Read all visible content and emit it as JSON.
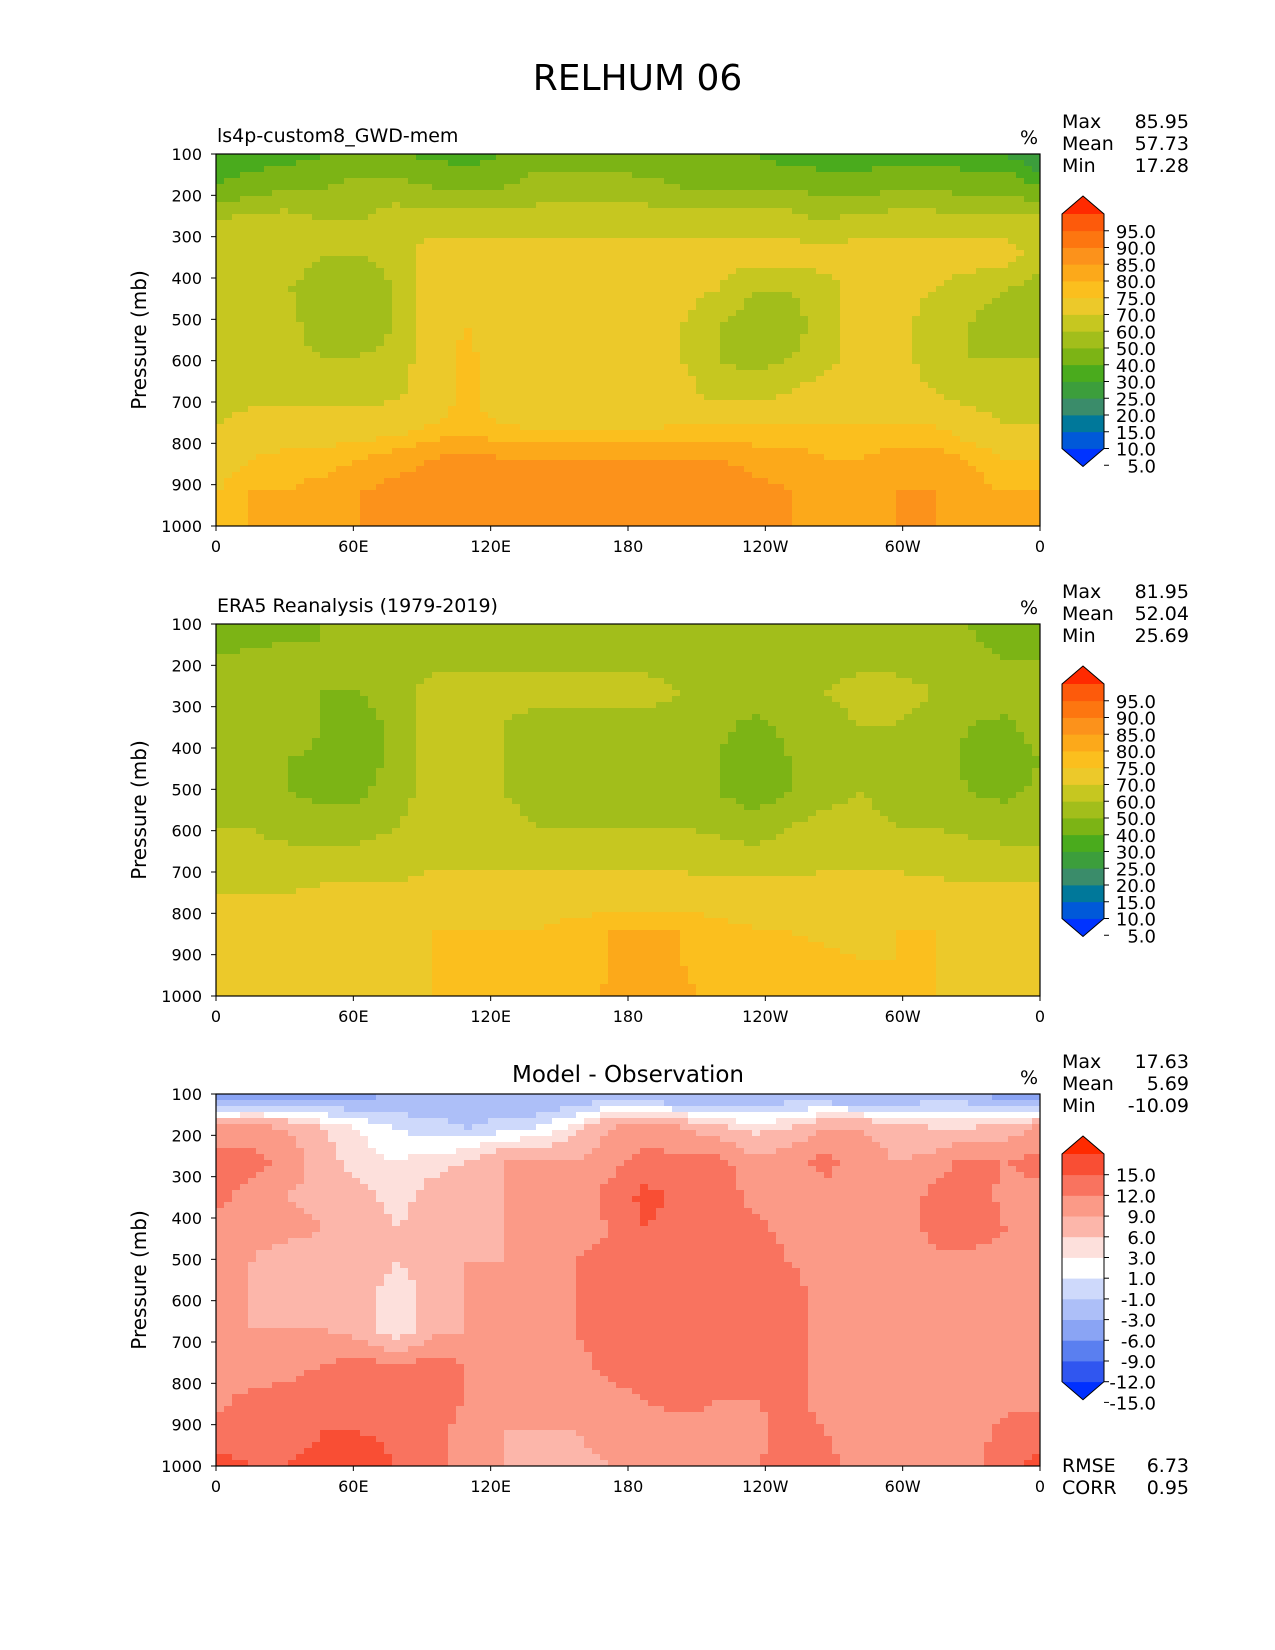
{
  "title": "RELHUM 06",
  "colors": {
    "rh_levels": [
      "#0033ff",
      "#0059d9",
      "#00789a",
      "#3a8c6a",
      "#3c9e3c",
      "#4aab1d",
      "#7cb415",
      "#a2be1b",
      "#c6c720",
      "#ecc92a",
      "#fbbf1e",
      "#fca91a",
      "#fc921b",
      "#fd7610",
      "#fd5a0b",
      "#ff2a00"
    ],
    "diff_levels": [
      "#0030ff",
      "#3056f0",
      "#5a7ff0",
      "#8aa4f4",
      "#adbff8",
      "#ced9fb",
      "#ffffff",
      "#fde0dc",
      "#fcb6aa",
      "#fb9a87",
      "#f9735f",
      "#f94e34",
      "#ff2a00"
    ]
  },
  "chart_data": [
    {
      "type": "contour",
      "subtitle": "ls4p-custom8_GWD-mem",
      "units": "%",
      "ylabel": "Pressure (mb)",
      "yticks": [
        "100",
        "200",
        "300",
        "400",
        "500",
        "600",
        "700",
        "800",
        "900",
        "1000"
      ],
      "xticks": [
        "0",
        "60E",
        "120E",
        "180",
        "120W",
        "60W",
        "0"
      ],
      "stats": {
        "max_label": "Max",
        "max": "85.95",
        "mean_label": "Mean",
        "mean": "57.73",
        "min_label": "Min",
        "min": "17.28"
      },
      "colorbar_ticks": [
        "95.0",
        "90.0",
        "85.0",
        "80.0",
        "75.0",
        "70.0",
        "60.0",
        "50.0",
        "40.0",
        "30.0",
        "25.0",
        "20.0",
        "15.0",
        "10.0",
        "5.0"
      ],
      "rows": [
        [
          25,
          25,
          25,
          30,
          30,
          30,
          28,
          25,
          30,
          35,
          35,
          35,
          30,
          30,
          30,
          30,
          25,
          25,
          25,
          25,
          25,
          25,
          25,
          20
        ],
        [
          30,
          35,
          40,
          40,
          45,
          45,
          40,
          40,
          40,
          45,
          45,
          45,
          45,
          40,
          40,
          40,
          40,
          35,
          35,
          40,
          40,
          35,
          35,
          30
        ],
        [
          50,
          55,
          55,
          50,
          50,
          55,
          55,
          55,
          55,
          55,
          55,
          55,
          55,
          55,
          55,
          55,
          55,
          50,
          55,
          55,
          55,
          55,
          55,
          55
        ],
        [
          55,
          55,
          55,
          50,
          50,
          55,
          65,
          65,
          65,
          65,
          65,
          65,
          65,
          65,
          65,
          65,
          65,
          65,
          65,
          65,
          65,
          65,
          65,
          55
        ],
        [
          50,
          55,
          50,
          45,
          40,
          50,
          65,
          65,
          65,
          65,
          65,
          65,
          65,
          65,
          60,
          50,
          50,
          55,
          65,
          65,
          60,
          55,
          50,
          45
        ],
        [
          50,
          55,
          55,
          40,
          40,
          50,
          65,
          70,
          65,
          65,
          65,
          65,
          65,
          60,
          50,
          45,
          45,
          55,
          65,
          65,
          55,
          50,
          45,
          50
        ],
        [
          55,
          55,
          55,
          50,
          50,
          55,
          65,
          72,
          65,
          65,
          65,
          65,
          65,
          60,
          50,
          45,
          50,
          55,
          65,
          65,
          55,
          50,
          50,
          50
        ],
        [
          55,
          55,
          55,
          55,
          55,
          58,
          65,
          72,
          65,
          65,
          65,
          65,
          65,
          65,
          55,
          55,
          60,
          65,
          65,
          65,
          60,
          55,
          55,
          55
        ],
        [
          60,
          65,
          65,
          65,
          65,
          65,
          70,
          72,
          70,
          68,
          68,
          68,
          68,
          70,
          70,
          70,
          70,
          70,
          70,
          70,
          70,
          65,
          60,
          60
        ],
        [
          65,
          70,
          72,
          72,
          75,
          78,
          80,
          82,
          80,
          80,
          80,
          80,
          80,
          80,
          80,
          78,
          78,
          75,
          75,
          78,
          78,
          75,
          70,
          70
        ],
        [
          70,
          75,
          75,
          78,
          80,
          82,
          82,
          85,
          82,
          82,
          82,
          82,
          82,
          84,
          84,
          82,
          80,
          78,
          78,
          80,
          80,
          78,
          75,
          75
        ],
        [
          72,
          75,
          75,
          78,
          80,
          82,
          82,
          82,
          80,
          80,
          82,
          82,
          82,
          82,
          82,
          80,
          80,
          78,
          78,
          80,
          80,
          78,
          78,
          78
        ]
      ]
    },
    {
      "type": "contour",
      "subtitle": "ERA5 Reanalysis (1979-2019)",
      "units": "%",
      "ylabel": "Pressure (mb)",
      "yticks": [
        "100",
        "200",
        "300",
        "400",
        "500",
        "600",
        "700",
        "800",
        "900",
        "1000"
      ],
      "xticks": [
        "0",
        "60E",
        "120E",
        "180",
        "120W",
        "60W",
        "0"
      ],
      "stats": {
        "max_label": "Max",
        "max": "81.95",
        "mean_label": "Mean",
        "mean": "52.04",
        "min_label": "Min",
        "min": "25.69"
      },
      "colorbar_ticks": [
        "95.0",
        "90.0",
        "85.0",
        "80.0",
        "75.0",
        "70.0",
        "60.0",
        "50.0",
        "40.0",
        "30.0",
        "25.0",
        "20.0",
        "15.0",
        "10.0",
        "5.0"
      ],
      "rows": [
        [
          35,
          35,
          38,
          40,
          40,
          40,
          45,
          45,
          45,
          45,
          45,
          45,
          45,
          45,
          45,
          45,
          45,
          45,
          45,
          45,
          40,
          40,
          35,
          35
        ],
        [
          40,
          42,
          42,
          40,
          40,
          42,
          45,
          45,
          45,
          45,
          45,
          45,
          45,
          42,
          40,
          40,
          40,
          45,
          45,
          45,
          42,
          42,
          40,
          40
        ],
        [
          45,
          50,
          50,
          40,
          40,
          45,
          55,
          55,
          55,
          55,
          55,
          55,
          55,
          50,
          45,
          45,
          45,
          50,
          55,
          55,
          50,
          45,
          45,
          45
        ],
        [
          45,
          45,
          45,
          40,
          35,
          42,
          55,
          55,
          50,
          45,
          45,
          45,
          45,
          45,
          42,
          38,
          42,
          45,
          50,
          50,
          45,
          40,
          38,
          45
        ],
        [
          40,
          40,
          40,
          38,
          35,
          42,
          55,
          55,
          50,
          45,
          45,
          45,
          45,
          45,
          40,
          35,
          40,
          45,
          45,
          45,
          45,
          38,
          35,
          40
        ],
        [
          45,
          45,
          40,
          38,
          38,
          45,
          55,
          55,
          50,
          45,
          45,
          45,
          45,
          45,
          40,
          35,
          40,
          45,
          50,
          45,
          45,
          40,
          38,
          42
        ],
        [
          50,
          50,
          45,
          45,
          45,
          50,
          55,
          55,
          55,
          50,
          50,
          50,
          50,
          50,
          48,
          45,
          50,
          55,
          55,
          50,
          50,
          48,
          45,
          45
        ],
        [
          55,
          55,
          55,
          55,
          55,
          55,
          58,
          58,
          58,
          58,
          58,
          58,
          58,
          58,
          55,
          55,
          55,
          58,
          58,
          58,
          55,
          55,
          55,
          55
        ],
        [
          60,
          60,
          60,
          62,
          62,
          62,
          65,
          65,
          65,
          65,
          65,
          65,
          65,
          65,
          65,
          65,
          65,
          65,
          65,
          65,
          65,
          62,
          62,
          62
        ],
        [
          62,
          64,
          64,
          64,
          64,
          66,
          70,
          70,
          70,
          70,
          72,
          75,
          75,
          75,
          72,
          70,
          70,
          68,
          68,
          70,
          70,
          66,
          64,
          64
        ],
        [
          62,
          64,
          64,
          64,
          64,
          66,
          70,
          70,
          70,
          70,
          72,
          75,
          78,
          75,
          72,
          70,
          72,
          72,
          70,
          70,
          70,
          66,
          64,
          64
        ],
        [
          64,
          64,
          64,
          64,
          64,
          66,
          70,
          70,
          70,
          70,
          72,
          76,
          78,
          76,
          74,
          72,
          72,
          74,
          72,
          72,
          70,
          66,
          64,
          64
        ]
      ]
    },
    {
      "type": "contour",
      "subtitle": "Model - Observation",
      "units": "%",
      "ylabel": "Pressure (mb)",
      "yticks": [
        "100",
        "200",
        "300",
        "400",
        "500",
        "600",
        "700",
        "800",
        "900",
        "1000"
      ],
      "xticks": [
        "0",
        "60E",
        "120E",
        "180",
        "120W",
        "60W",
        "0"
      ],
      "stats": {
        "max_label": "Max",
        "max": "17.63",
        "mean_label": "Mean",
        "mean": "5.69",
        "min_label": "Min",
        "min": "-10.09"
      },
      "colorbar_ticks": [
        "15.0",
        "12.0",
        "9.0",
        "6.0",
        "3.0",
        "1.0",
        "-1.0",
        "-3.0",
        "-6.0",
        "-9.0",
        "-12.0",
        "-15.0"
      ],
      "extra_stats": {
        "rmse_label": "RMSE",
        "rmse": "6.73",
        "corr_label": "CORR",
        "corr": "0.95"
      },
      "rows": [
        [
          -10,
          -8,
          -9,
          -7,
          -7,
          -6,
          -5,
          -5,
          -6,
          -6,
          -6,
          -5,
          -6,
          -7,
          -6,
          -6,
          -5,
          -6,
          -7,
          -6,
          -5,
          -5,
          -8,
          -10
        ],
        [
          7,
          7,
          6,
          3,
          1,
          -1,
          -2,
          -3,
          -2,
          -1,
          2,
          6,
          8,
          6,
          4,
          2,
          3,
          6,
          6,
          4,
          3,
          3,
          4,
          7
        ],
        [
          10,
          10,
          8,
          4,
          2,
          1,
          2,
          3,
          6,
          6,
          6,
          8,
          10,
          10,
          10,
          7,
          8,
          10,
          8,
          6,
          7,
          10,
          9,
          10
        ],
        [
          10,
          8,
          6,
          5,
          4,
          2,
          4,
          5,
          6,
          6,
          7,
          10,
          13,
          11,
          11,
          8,
          7,
          8,
          6,
          6,
          10,
          12,
          8,
          8
        ],
        [
          8,
          7,
          7,
          6,
          5,
          3,
          4,
          5,
          6,
          8,
          8,
          9,
          12,
          11,
          11,
          10,
          8,
          7,
          6,
          6,
          10,
          11,
          9,
          8
        ],
        [
          7,
          6,
          4,
          5,
          5,
          3,
          4,
          6,
          6,
          8,
          9,
          10,
          12,
          11,
          11,
          11,
          9,
          8,
          7,
          6,
          8,
          8,
          7,
          7
        ],
        [
          6,
          6,
          4,
          4,
          5,
          1,
          4,
          6,
          6,
          8,
          9,
          10,
          11,
          11,
          11,
          11,
          10,
          8,
          7,
          6,
          7,
          7,
          7,
          7
        ],
        [
          6,
          6,
          6,
          6,
          5,
          1,
          5,
          6,
          7,
          8,
          9,
          10,
          10,
          10,
          10,
          11,
          10,
          8,
          7,
          6,
          6,
          6,
          6,
          6
        ],
        [
          6,
          7,
          8,
          9,
          10,
          9,
          10,
          9,
          7,
          7,
          8,
          10,
          11,
          10,
          10,
          11,
          10,
          8,
          7,
          6,
          6,
          6,
          6,
          6
        ],
        [
          8,
          10,
          10,
          11,
          12,
          11,
          10,
          9,
          8,
          7,
          7,
          8,
          9,
          10,
          9,
          9,
          10,
          8,
          7,
          6,
          6,
          7,
          8,
          8
        ],
        [
          10,
          11,
          11,
          12,
          12,
          11,
          10,
          8,
          6,
          6,
          6,
          7,
          8,
          8,
          8,
          8,
          10,
          9,
          7,
          6,
          6,
          7,
          10,
          11
        ],
        [
          13,
          12,
          12,
          13,
          15,
          12,
          10,
          8,
          6,
          5,
          5,
          6,
          6,
          6,
          7,
          8,
          12,
          10,
          8,
          6,
          7,
          8,
          11,
          13
        ]
      ]
    }
  ]
}
